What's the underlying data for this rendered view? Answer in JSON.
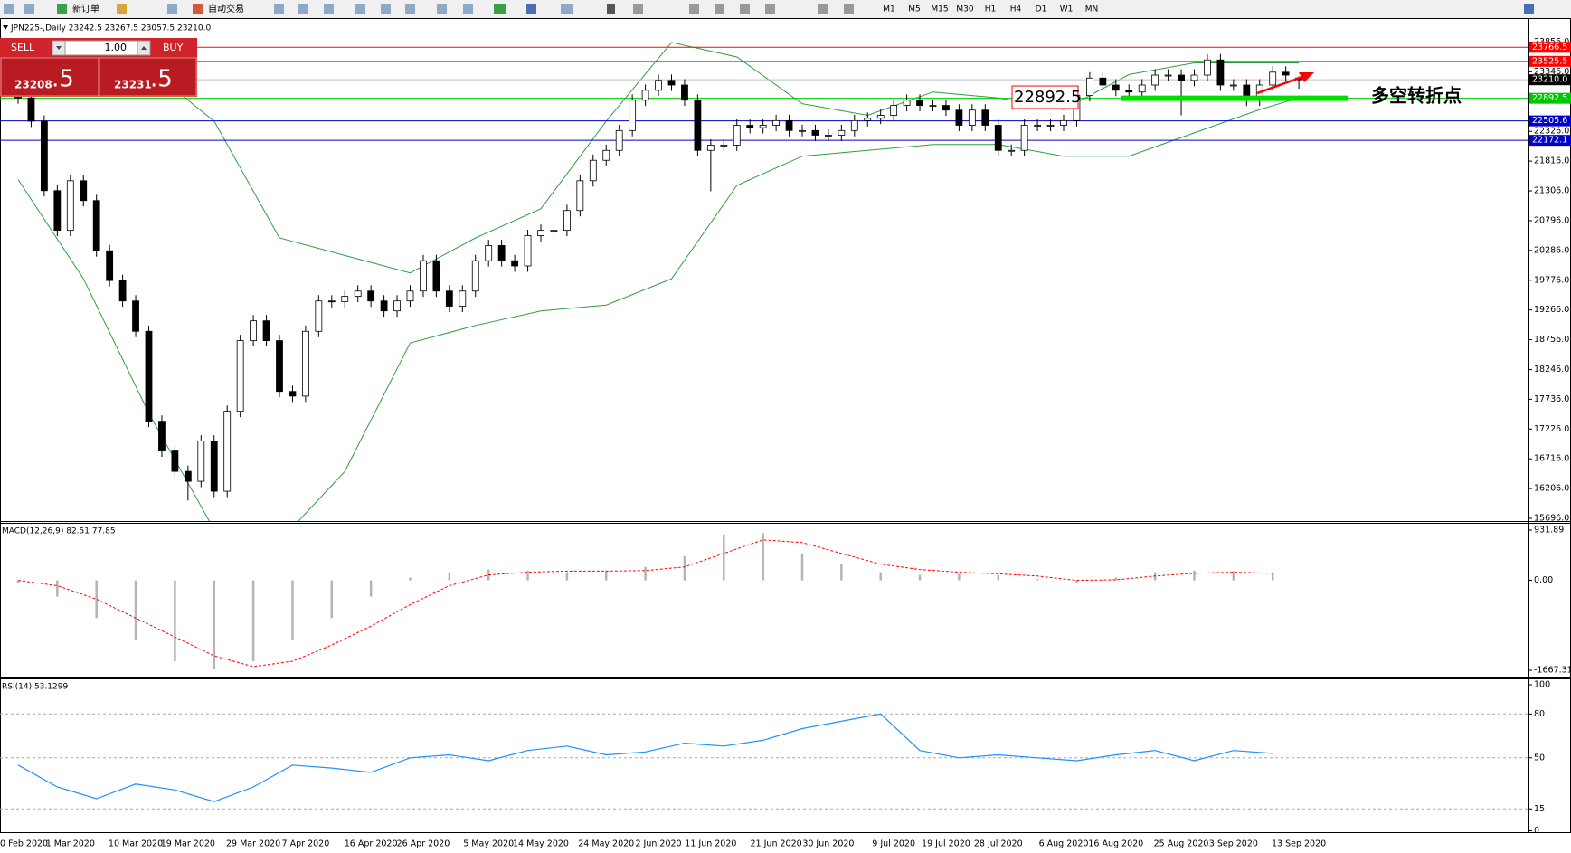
{
  "toolbar": {
    "new_order": "新订单",
    "auto_trading": "自动交易",
    "timeframes": [
      "M1",
      "M5",
      "M15",
      "M30",
      "H1",
      "H4",
      "D1",
      "W1",
      "MN"
    ]
  },
  "trade_panel": {
    "sell": "SELL",
    "buy": "BUY",
    "lots": "1.00",
    "bid_main": "23208",
    "bid_small": ".5",
    "ask_main": "23231",
    "ask_small": ".5"
  },
  "chart_data": [
    {
      "type": "candlestick",
      "title": "JPN225-,Daily  23242.5 23267.5 23057.5 23210.0",
      "categories": [
        "0 Feb 2020",
        null,
        null,
        null,
        "1 Mar 2020",
        null,
        null,
        null,
        null,
        "10 Mar 2020",
        null,
        null,
        null,
        "19 Mar 2020",
        null,
        null,
        null,
        null,
        "29 Mar 2020",
        null,
        null,
        null,
        "7 Apr 2020",
        null,
        null,
        null,
        null,
        "16 Apr 2020",
        null,
        null,
        null,
        "26 Apr 2020",
        null,
        null,
        null,
        null,
        "5 May 2020",
        null,
        null,
        null,
        "14 May 2020",
        null,
        null,
        null,
        null,
        "24 May 2020",
        null,
        null,
        null,
        "2 Jun 2020",
        null,
        null,
        null,
        "11 Jun 2020",
        null,
        null,
        null,
        null,
        "21 Jun 2020",
        null,
        null,
        null,
        "30 Jun 2020",
        null,
        null,
        null,
        null,
        "9 Jul 2020",
        null,
        null,
        null,
        "19 Jul 2020",
        null,
        null,
        null,
        "28 Jul 2020",
        null,
        null,
        null,
        null,
        "6 Aug 2020",
        null,
        null,
        null,
        "16 Aug 2020",
        null,
        null,
        null,
        null,
        "25 Aug 2020",
        null,
        null,
        null,
        "3 Sep 2020",
        null,
        null,
        null,
        null,
        "13 Sep 2020"
      ],
      "open": [
        23000,
        22900,
        22500,
        21310,
        20630,
        21480,
        21140,
        20280,
        19770,
        19420,
        18900,
        17360,
        16850,
        16500,
        16330,
        17020,
        16160,
        17530,
        18740,
        19080,
        18740,
        17870,
        17790,
        18900,
        19420,
        19410,
        19500,
        19590,
        19420,
        19250,
        19420,
        19590,
        20110,
        19590,
        19330,
        19590,
        20110,
        20370,
        20110,
        20020,
        20540,
        20630,
        20630,
        20970,
        21480,
        21830,
        22000,
        22340,
        22860,
        23030,
        23200,
        23120,
        22860,
        22000,
        22090,
        22090,
        22430,
        22390,
        22430,
        22510,
        22340,
        22340,
        22260,
        22260,
        22340,
        22510,
        22550,
        22600,
        22770,
        22860,
        22770,
        22770,
        22690,
        22430,
        22690,
        22430,
        22000,
        22000,
        22430,
        22430,
        22430,
        22510,
        22940,
        23240,
        23120,
        23030,
        23000,
        23120,
        23290,
        23290,
        23200,
        23290,
        23550,
        23120,
        23120,
        22860,
        23120,
        23340,
        23242.5
      ],
      "high": [
        23100,
        23000,
        22600,
        21410,
        21580,
        21580,
        21240,
        20380,
        19870,
        19520,
        19000,
        17460,
        16950,
        16600,
        17120,
        17120,
        17630,
        18840,
        19180,
        19180,
        18840,
        17970,
        19000,
        19520,
        19520,
        19600,
        19690,
        19690,
        19520,
        19520,
        19690,
        20210,
        20210,
        19690,
        19690,
        20210,
        20470,
        20470,
        20210,
        20640,
        20730,
        20730,
        21070,
        21580,
        21930,
        22100,
        22440,
        22960,
        23130,
        23300,
        23300,
        23220,
        22960,
        22190,
        22190,
        22530,
        22530,
        22530,
        22610,
        22610,
        22440,
        22440,
        22360,
        22440,
        22610,
        22650,
        22700,
        22870,
        22960,
        22960,
        22870,
        22870,
        22790,
        22790,
        22790,
        22530,
        22100,
        22530,
        22530,
        22530,
        22610,
        23040,
        23340,
        23340,
        23220,
        23130,
        23220,
        23390,
        23390,
        23390,
        23390,
        23650,
        23650,
        23220,
        23220,
        23220,
        23440,
        23440,
        23267.5
      ],
      "low": [
        22800,
        22400,
        21210,
        20530,
        20530,
        21040,
        20180,
        19670,
        19320,
        18800,
        17260,
        16750,
        16400,
        16000,
        16230,
        16060,
        16060,
        17430,
        18640,
        18640,
        17770,
        17690,
        17690,
        18800,
        19310,
        19310,
        19400,
        19320,
        19150,
        19150,
        19320,
        19490,
        19490,
        19230,
        19230,
        19490,
        20010,
        20010,
        19920,
        19920,
        20440,
        20530,
        20530,
        20870,
        21380,
        21730,
        21900,
        22240,
        22760,
        22930,
        23020,
        22760,
        21900,
        21300,
        21990,
        21990,
        22290,
        22290,
        22330,
        22240,
        22240,
        22160,
        22160,
        22160,
        22240,
        22410,
        22450,
        22500,
        22670,
        22670,
        22670,
        22590,
        22330,
        22330,
        22330,
        21900,
        21900,
        21900,
        22330,
        22330,
        22330,
        22410,
        22840,
        23020,
        22930,
        22900,
        22900,
        23020,
        23190,
        22600,
        23100,
        23190,
        23020,
        23020,
        22760,
        22760,
        23020,
        23190,
        23057.5
      ],
      "close": [
        22900,
        22500,
        21310,
        20630,
        21480,
        21140,
        20280,
        19770,
        19420,
        18900,
        17360,
        16850,
        16500,
        16330,
        17020,
        16160,
        17530,
        18740,
        19080,
        18740,
        17870,
        17790,
        18900,
        19420,
        19410,
        19500,
        19590,
        19420,
        19250,
        19420,
        19590,
        20110,
        19590,
        19330,
        19590,
        20110,
        20370,
        20110,
        20020,
        20540,
        20630,
        20630,
        20970,
        21480,
        21830,
        22000,
        22340,
        22860,
        23030,
        23200,
        23120,
        22860,
        22000,
        22090,
        22090,
        22430,
        22390,
        22430,
        22510,
        22340,
        22340,
        22260,
        22260,
        22340,
        22510,
        22550,
        22600,
        22770,
        22860,
        22770,
        22770,
        22690,
        22430,
        22690,
        22430,
        22000,
        22000,
        22430,
        22430,
        22430,
        22510,
        22940,
        23240,
        23120,
        23030,
        23000,
        23120,
        23290,
        23290,
        23200,
        23290,
        23550,
        23120,
        23120,
        22860,
        23120,
        23340,
        23290,
        23210
      ],
      "bands": {
        "color": "#2e9e3e",
        "x": [
          0,
          5,
          10,
          15,
          20,
          25,
          30,
          35,
          40,
          45,
          50,
          55,
          60,
          65,
          70,
          75,
          80,
          85,
          90,
          95,
          98
        ],
        "upper": [
          23700,
          23600,
          23400,
          22500,
          20500,
          20200,
          19900,
          20500,
          21000,
          22500,
          23850,
          23600,
          22800,
          22600,
          23000,
          22900,
          22700,
          23300,
          23500,
          23500,
          23500
        ],
        "lower": [
          21500,
          19800,
          17500,
          15500,
          15300,
          16500,
          18700,
          19000,
          19250,
          19350,
          19800,
          21400,
          21900,
          22000,
          22100,
          22100,
          21900,
          21900,
          22300,
          22700,
          22900
        ]
      },
      "ylim": [
        15696,
        23856
      ],
      "yticks": [
        {
          "value": 23856,
          "label": "23856.0"
        },
        {
          "value": 23346,
          "label": "23346.0"
        },
        {
          "value": 22326,
          "label": "22326.0"
        },
        {
          "value": 21816,
          "label": "21816.0"
        },
        {
          "value": 21306,
          "label": "21306.0"
        },
        {
          "value": 20796,
          "label": "20796.0"
        },
        {
          "value": 20286,
          "label": "20286.0"
        },
        {
          "value": 19776,
          "label": "19776.0"
        },
        {
          "value": 19266,
          "label": "19266.0"
        },
        {
          "value": 18756,
          "label": "18756.0"
        },
        {
          "value": 18246,
          "label": "18246.0"
        },
        {
          "value": 17736,
          "label": "17736.0"
        },
        {
          "value": 17226,
          "label": "17226.0"
        },
        {
          "value": 16716,
          "label": "16716.0"
        },
        {
          "value": 16206,
          "label": "16206.0"
        },
        {
          "value": 15696,
          "label": "15696.0"
        }
      ],
      "levels": [
        {
          "value": 23766.5,
          "label": "23766.5",
          "color": "#ff0000",
          "box_color": "#ff0000"
        },
        {
          "value": 23525.5,
          "label": "23525.5",
          "color": "#ff0000",
          "box_color": "#ff0000"
        },
        {
          "value": 22892.5,
          "label": "22892.5",
          "color": "#00c800",
          "box_color": "#00c800"
        },
        {
          "value": 22505.6,
          "label": "22505.6",
          "color": "#0000c8",
          "box_color": "#0000c8"
        },
        {
          "value": 22172.1,
          "label": "22172.1",
          "color": "#0000c8",
          "box_color": "#0000c8"
        },
        {
          "value": 23210,
          "label": "23210.0",
          "color": "#c0c0c0",
          "box_color": "#000000"
        }
      ],
      "annotation": {
        "label": "22892.5",
        "text": "多空转折点",
        "color": "#00e000"
      }
    },
    {
      "type": "macd",
      "title": "MACD(12,26,9) 82.51 77.85",
      "x": [
        0,
        3,
        6,
        9,
        12,
        15,
        18,
        21,
        24,
        27,
        30,
        33,
        36,
        39,
        42,
        45,
        48,
        51,
        54,
        57,
        60,
        63,
        66,
        69,
        72,
        75,
        78,
        81,
        84,
        87,
        90,
        93,
        96
      ],
      "values": [
        -50,
        -300,
        -700,
        -1100,
        -1500,
        -1650,
        -1500,
        -1100,
        -700,
        -300,
        50,
        150,
        200,
        180,
        150,
        180,
        250,
        450,
        850,
        880,
        500,
        300,
        150,
        100,
        120,
        100,
        20,
        -50,
        50,
        150,
        180,
        170,
        150
      ],
      "signal": [
        0,
        -100,
        -350,
        -700,
        -1050,
        -1400,
        -1600,
        -1500,
        -1200,
        -850,
        -450,
        -100,
        100,
        150,
        170,
        170,
        180,
        250,
        500,
        750,
        700,
        500,
        300,
        200,
        150,
        120,
        80,
        0,
        10,
        80,
        130,
        150,
        130
      ],
      "color": "#b4b4b4",
      "signal_color": "#ff0000",
      "ylim": [
        -1667.31,
        931.89
      ],
      "yticks": [
        931.89,
        {
          "value": 0,
          "label": "0.00"
        },
        -1667.31
      ]
    },
    {
      "type": "line",
      "title": "RSI(14) 53.1299",
      "x": [
        0,
        3,
        6,
        9,
        12,
        15,
        18,
        21,
        24,
        27,
        30,
        33,
        36,
        39,
        42,
        45,
        48,
        51,
        54,
        57,
        60,
        63,
        66,
        69,
        72,
        75,
        78,
        81,
        84,
        87,
        90,
        93,
        96
      ],
      "values": [
        45,
        30,
        22,
        32,
        28,
        20,
        30,
        45,
        43,
        40,
        50,
        52,
        48,
        55,
        58,
        52,
        54,
        60,
        58,
        62,
        70,
        75,
        80,
        55,
        50,
        52,
        50,
        48,
        52,
        55,
        48,
        55,
        53
      ],
      "color": "#1e90ff",
      "ylim": [
        0,
        100
      ],
      "yticks": [
        100,
        80,
        50,
        15,
        0
      ],
      "levels": [
        80,
        50,
        15
      ]
    }
  ]
}
